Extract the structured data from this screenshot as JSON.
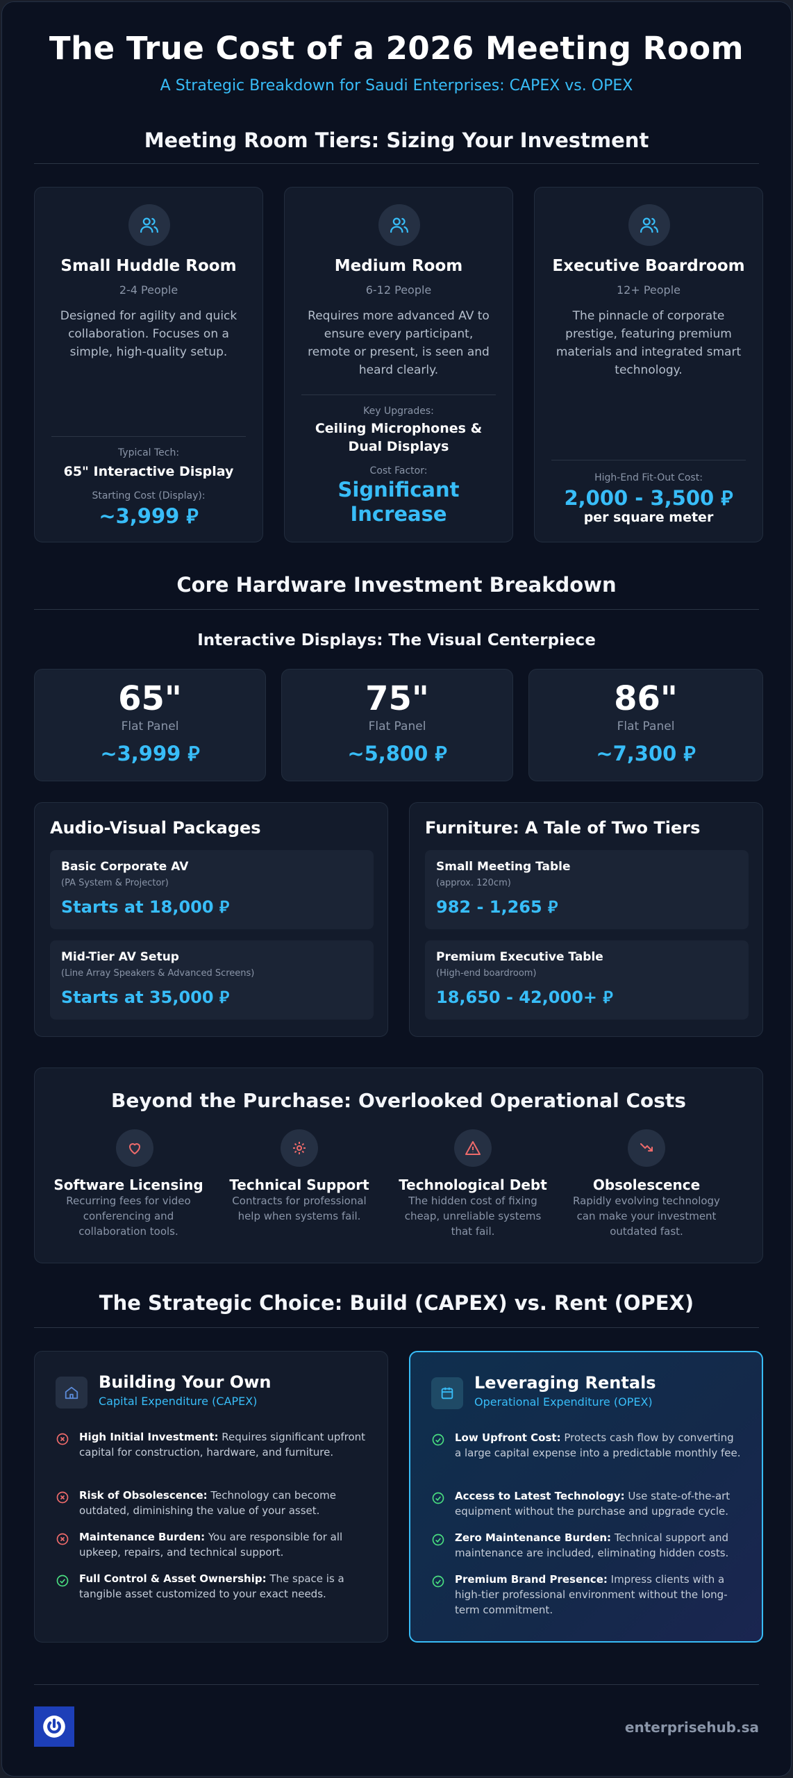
{
  "header": {
    "title": "The True Cost of a 2026 Meeting Room",
    "subtitle": "A Strategic Breakdown for Saudi Enterprises: CAPEX vs. OPEX"
  },
  "tiers": {
    "section_title": "Meeting Room Tiers: Sizing Your Investment",
    "cards": [
      {
        "icon": "users-icon",
        "name": "Small Huddle Room",
        "people": "2-4 People",
        "description": "Designed for agility and quick collaboration. Focuses on a simple, high-quality setup.",
        "label1": "Typical Tech:",
        "value1": "65\" Interactive Display",
        "label2": "Starting Cost (Display):",
        "value2": "~3,999 ⃁"
      },
      {
        "icon": "users-icon",
        "name": "Medium Room",
        "people": "6-12 People",
        "description": "Requires more advanced AV to ensure every participant, remote or present, is seen and heard clearly.",
        "label1": "Key Upgrades:",
        "value1": "Ceiling Microphones & Dual Displays",
        "label2": "Cost Factor:",
        "value2": "Significant Increase"
      },
      {
        "icon": "users-icon",
        "name": "Executive Boardroom",
        "people": "12+ People",
        "description": "The pinnacle of corporate prestige, featuring premium materials and integrated smart technology.",
        "label1": "High-End Fit-Out Cost:",
        "value1": "2,000 - 3,500 ⃁",
        "value1b": "per square meter"
      }
    ]
  },
  "hardware": {
    "section_title": "Core Hardware Investment Breakdown",
    "displays_title": "Interactive Displays: The Visual Centerpiece",
    "displays": [
      {
        "size": "65\"",
        "type": "Flat Panel",
        "price": "~3,999 ⃁"
      },
      {
        "size": "75\"",
        "type": "Flat Panel",
        "price": "~5,800 ⃁"
      },
      {
        "size": "86\"",
        "type": "Flat Panel",
        "price": "~7,300 ⃁"
      }
    ],
    "av": {
      "title": "Audio-Visual Packages",
      "items": [
        {
          "name": "Basic Corporate AV",
          "note": "(PA System & Projector)",
          "price": "Starts at 18,000 ⃁"
        },
        {
          "name": "Mid-Tier AV Setup",
          "note": "(Line Array Speakers & Advanced Screens)",
          "price": "Starts at 35,000 ⃁"
        }
      ]
    },
    "furniture": {
      "title": "Furniture: A Tale of Two Tiers",
      "items": [
        {
          "name": "Small Meeting Table",
          "note": "(approx. 120cm)",
          "price": "982 - 1,265 ⃁"
        },
        {
          "name": "Premium Executive Table",
          "note": "(High-end boardroom)",
          "price": "18,650 - 42,000+ ⃁"
        }
      ]
    }
  },
  "operational": {
    "title": "Beyond the Purchase: Overlooked Operational Costs",
    "items": [
      {
        "icon": "heart-icon",
        "name": "Software Licensing",
        "desc": "Recurring fees for video conferencing and collaboration tools."
      },
      {
        "icon": "gear-icon",
        "name": "Technical Support",
        "desc": "Contracts for professional help when systems fail."
      },
      {
        "icon": "warning-icon",
        "name": "Technological Debt",
        "desc": "The hidden cost of fixing cheap, unreliable systems that fail."
      },
      {
        "icon": "trend-down-icon",
        "name": "Obsolescence",
        "desc": "Rapidly evolving technology can make your investment outdated fast."
      }
    ]
  },
  "choice": {
    "section_title": "The Strategic Choice: Build (CAPEX) vs. Rent (OPEX)",
    "build": {
      "icon": "home-icon",
      "title": "Building Your Own",
      "subtitle": "Capital Expenditure (CAPEX)",
      "items": [
        {
          "mark": "x",
          "bold": "High Initial Investment:",
          "text": " Requires significant upfront capital for construction, hardware, and furniture."
        },
        {
          "mark": "x",
          "bold": "Risk of Obsolescence:",
          "text": " Technology can become outdated, diminishing the value of your asset."
        },
        {
          "mark": "x",
          "bold": "Maintenance Burden:",
          "text": " You are responsible for all upkeep, repairs, and technical support."
        },
        {
          "mark": "check",
          "bold": "Full Control & Asset Ownership:",
          "text": " The space is a tangible asset customized to your exact needs."
        }
      ]
    },
    "rent": {
      "icon": "calendar-icon",
      "title": "Leveraging Rentals",
      "subtitle": "Operational Expenditure (OPEX)",
      "items": [
        {
          "mark": "check",
          "bold": "Low Upfront Cost:",
          "text": " Protects cash flow by converting a large capital expense into a predictable monthly fee."
        },
        {
          "mark": "check",
          "bold": "Access to Latest Technology:",
          "text": " Use state-of-the-art equipment without the purchase and upgrade cycle."
        },
        {
          "mark": "check",
          "bold": "Zero Maintenance Burden:",
          "text": " Technical support and maintenance are included, eliminating hidden costs."
        },
        {
          "mark": "check",
          "bold": "Premium Brand Presence:",
          "text": " Impress clients with a high-tier professional environment without the long-term commitment."
        }
      ]
    }
  },
  "footer": {
    "site": "enterprisehub.sa",
    "logo_icon": "power-icon"
  },
  "colors": {
    "accent": "#38bdf8",
    "negative": "#ef6b6b",
    "positive": "#4ade80",
    "background": "#0b1120"
  }
}
